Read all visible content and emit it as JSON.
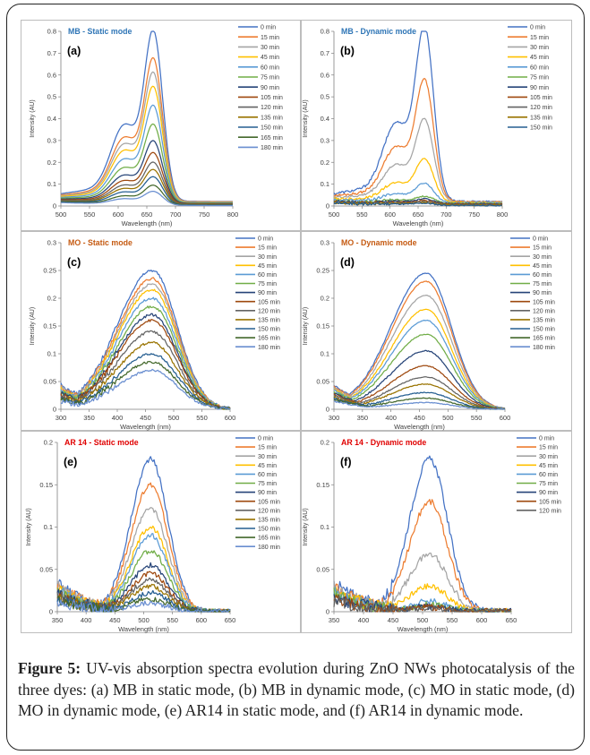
{
  "caption": {
    "label": "Figure 5:",
    "text": "UV-vis absorption spectra evolution during ZnO NWs photocatalysis of the three dyes: (a) MB in static mode, (b) MB in dynamic mode, (c) MO in static mode, (d) MO in dynamic mode, (e) AR14 in static mode, and (f) AR14 in dynamic mode."
  },
  "colors": [
    "#4472C4",
    "#ED7D31",
    "#A5A5A5",
    "#FFC000",
    "#5B9BD5",
    "#70AD47",
    "#264478",
    "#9E480E",
    "#636363",
    "#997300",
    "#255E91",
    "#43682B",
    "#698ED0"
  ],
  "chart_data": [
    {
      "id": "a",
      "type": "line",
      "title": "MB - Static mode",
      "panel_label": "(a)",
      "title_color": "#2e75b6",
      "xlabel": "Wavelength (nm)",
      "ylabel": "Intensity (AU)",
      "xlim": [
        500,
        800
      ],
      "ylim": [
        0,
        0.8
      ],
      "xticks": [
        "500",
        "550",
        "600",
        "650",
        "700",
        "750",
        "800"
      ],
      "yticks": [
        "0",
        "0.1",
        "0.2",
        "0.3",
        "0.4",
        "0.5",
        "0.6",
        "0.7",
        "0.8"
      ],
      "peak_wavelength": 662,
      "shape": "mb",
      "noise": 0,
      "series": [
        {
          "name": "0 min",
          "peak": 0.74
        },
        {
          "name": "15 min",
          "peak": 0.62
        },
        {
          "name": "30 min",
          "peak": 0.56
        },
        {
          "name": "45 min",
          "peak": 0.5
        },
        {
          "name": "60 min",
          "peak": 0.42
        },
        {
          "name": "75 min",
          "peak": 0.34
        },
        {
          "name": "90 min",
          "peak": 0.27
        },
        {
          "name": "105 min",
          "peak": 0.22
        },
        {
          "name": "120 min",
          "peak": 0.18
        },
        {
          "name": "135 min",
          "peak": 0.15
        },
        {
          "name": "150 min",
          "peak": 0.12
        },
        {
          "name": "165 min",
          "peak": 0.085
        },
        {
          "name": "180 min",
          "peak": 0.06
        }
      ]
    },
    {
      "id": "b",
      "type": "line",
      "title": "MB - Dynamic mode",
      "panel_label": "(b)",
      "title_color": "#2e75b6",
      "xlabel": "Wavelength (nm)",
      "ylabel": "Intensity (AU)",
      "xlim": [
        500,
        800
      ],
      "ylim": [
        0,
        0.8
      ],
      "xticks": [
        "500",
        "550",
        "600",
        "650",
        "700",
        "750",
        "800"
      ],
      "yticks": [
        "0",
        "0.1",
        "0.2",
        "0.3",
        "0.4",
        "0.5",
        "0.6",
        "0.7",
        "0.8"
      ],
      "peak_wavelength": 662,
      "shape": "mb",
      "noise": 0.004,
      "series": [
        {
          "name": "0 min",
          "peak": 0.76
        },
        {
          "name": "15 min",
          "peak": 0.53
        },
        {
          "name": "30 min",
          "peak": 0.36
        },
        {
          "name": "45 min",
          "peak": 0.19
        },
        {
          "name": "60 min",
          "peak": 0.085
        },
        {
          "name": "75 min",
          "peak": 0.03
        },
        {
          "name": "90 min",
          "peak": 0.02
        },
        {
          "name": "105 min",
          "peak": 0.015
        },
        {
          "name": "120 min",
          "peak": 0.012
        },
        {
          "name": "135 min",
          "peak": 0.01
        },
        {
          "name": "150 min",
          "peak": 0.008
        }
      ]
    },
    {
      "id": "c",
      "type": "line",
      "title": "MO  - Static mode",
      "panel_label": "(c)",
      "title_color": "#c55a11",
      "xlabel": "Wavelength (nm)",
      "ylabel": "Intensity (AU)",
      "xlim": [
        300,
        600
      ],
      "ylim": [
        0,
        0.3
      ],
      "xticks": [
        "300",
        "350",
        "400",
        "450",
        "500",
        "550",
        "600"
      ],
      "yticks": [
        "0",
        "0.05",
        "0.1",
        "0.15",
        "0.2",
        "0.25",
        "0.3"
      ],
      "peak_wavelength": 462,
      "shape": "mo",
      "noise": 0.003,
      "series": [
        {
          "name": "0 min",
          "peak": 0.25
        },
        {
          "name": "15 min",
          "peak": 0.235
        },
        {
          "name": "30 min",
          "peak": 0.225
        },
        {
          "name": "45 min",
          "peak": 0.215
        },
        {
          "name": "60 min",
          "peak": 0.2
        },
        {
          "name": "75 min",
          "peak": 0.185
        },
        {
          "name": "90 min",
          "peak": 0.17
        },
        {
          "name": "105 min",
          "peak": 0.16
        },
        {
          "name": "120 min",
          "peak": 0.14
        },
        {
          "name": "135 min",
          "peak": 0.12
        },
        {
          "name": "150 min",
          "peak": 0.1
        },
        {
          "name": "165 min",
          "peak": 0.085
        },
        {
          "name": "180 min",
          "peak": 0.07
        }
      ]
    },
    {
      "id": "d",
      "type": "line",
      "title": "MO - Dynamic mode",
      "panel_label": "(d)",
      "title_color": "#c55a11",
      "xlabel": "Wavelength (nm)",
      "ylabel": "Intensity (AU)",
      "xlim": [
        300,
        600
      ],
      "ylim": [
        0,
        0.3
      ],
      "xticks": [
        "300",
        "350",
        "400",
        "450",
        "500",
        "550",
        "600"
      ],
      "yticks": [
        "0",
        "0.05",
        "0.1",
        "0.15",
        "0.2",
        "0.25",
        "0.3"
      ],
      "peak_wavelength": 462,
      "shape": "mo",
      "noise": 0.001,
      "series": [
        {
          "name": "0 min",
          "peak": 0.245
        },
        {
          "name": "15 min",
          "peak": 0.23
        },
        {
          "name": "30 min",
          "peak": 0.205
        },
        {
          "name": "45 min",
          "peak": 0.18
        },
        {
          "name": "60 min",
          "peak": 0.16
        },
        {
          "name": "75 min",
          "peak": 0.135
        },
        {
          "name": "90 min",
          "peak": 0.105
        },
        {
          "name": "105 min",
          "peak": 0.078
        },
        {
          "name": "120 min",
          "peak": 0.058
        },
        {
          "name": "135 min",
          "peak": 0.045
        },
        {
          "name": "150 min",
          "peak": 0.03
        },
        {
          "name": "165 min",
          "peak": 0.02
        },
        {
          "name": "180 min",
          "peak": 0.012
        }
      ]
    },
    {
      "id": "e",
      "type": "line",
      "title": "AR 14 - Static mode",
      "panel_label": "(e)",
      "title_color": "#e00000",
      "xlabel": "Wavelength (nm)",
      "ylabel": "Intensity (AU)",
      "xlim": [
        350,
        650
      ],
      "ylim": [
        0,
        0.2
      ],
      "xticks": [
        "350",
        "400",
        "450",
        "500",
        "550",
        "600",
        "650"
      ],
      "yticks": [
        "0",
        "0.05",
        "0.1",
        "0.15",
        "0.2"
      ],
      "peak_wavelength": 512,
      "shape": "ar",
      "noise": 0.004,
      "series": [
        {
          "name": "0 min",
          "peak": 0.18
        },
        {
          "name": "15 min",
          "peak": 0.15
        },
        {
          "name": "30 min",
          "peak": 0.122
        },
        {
          "name": "45 min",
          "peak": 0.1
        },
        {
          "name": "60 min",
          "peak": 0.09
        },
        {
          "name": "75 min",
          "peak": 0.072
        },
        {
          "name": "90 min",
          "peak": 0.055
        },
        {
          "name": "105 min",
          "peak": 0.045
        },
        {
          "name": "120 min",
          "peak": 0.038
        },
        {
          "name": "135 min",
          "peak": 0.03
        },
        {
          "name": "150 min",
          "peak": 0.022
        },
        {
          "name": "165 min",
          "peak": 0.015
        },
        {
          "name": "180 min",
          "peak": 0.01
        }
      ]
    },
    {
      "id": "f",
      "type": "line",
      "title": "AR 14  - Dynamic mode",
      "panel_label": "(f)",
      "title_color": "#e00000",
      "xlabel": "Wavelength (nm)",
      "ylabel": "Intensity (AU)",
      "xlim": [
        350,
        650
      ],
      "ylim": [
        0,
        0.2
      ],
      "xticks": [
        "350",
        "400",
        "450",
        "500",
        "550",
        "600",
        "650"
      ],
      "yticks": [
        "0",
        "0.05",
        "0.1",
        "0.15",
        "0.2"
      ],
      "peak_wavelength": 512,
      "shape": "ar",
      "noise": 0.005,
      "series": [
        {
          "name": "0 min",
          "peak": 0.18
        },
        {
          "name": "15 min",
          "peak": 0.13
        },
        {
          "name": "30 min",
          "peak": 0.068
        },
        {
          "name": "45 min",
          "peak": 0.03
        },
        {
          "name": "60 min",
          "peak": 0.012
        },
        {
          "name": "75 min",
          "peak": 0.008
        },
        {
          "name": "90 min",
          "peak": 0.006
        },
        {
          "name": "105 min",
          "peak": 0.005
        },
        {
          "name": "120 min",
          "peak": 0.004
        }
      ]
    }
  ]
}
